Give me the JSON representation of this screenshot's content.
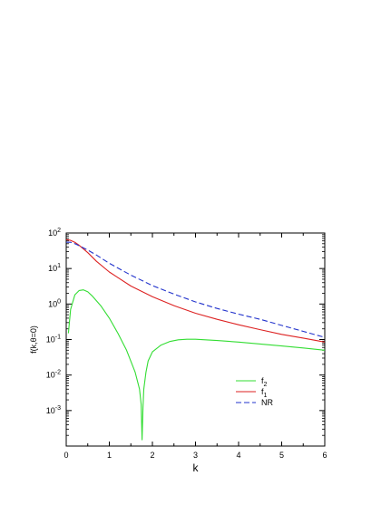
{
  "chart_data": {
    "type": "line",
    "xlabel": "k",
    "ylabel": "f(k,θ=0)",
    "xlim": [
      0,
      6
    ],
    "ylim": [
      0.0001,
      100
    ],
    "yscale": "log",
    "x_ticks": [
      "0",
      "1",
      "2",
      "3",
      "4",
      "5",
      "6"
    ],
    "y_ticks": [
      {
        "base": "10",
        "exp": "-3",
        "value": 0.001
      },
      {
        "base": "10",
        "exp": "-2",
        "value": 0.01
      },
      {
        "base": "10",
        "exp": "-1",
        "value": 0.1
      },
      {
        "base": "10",
        "exp": "0",
        "value": 1
      },
      {
        "base": "10",
        "exp": "1",
        "value": 10
      },
      {
        "base": "10",
        "exp": "2",
        "value": 100
      }
    ],
    "grid": false,
    "legend_position": "lower-right",
    "series": [
      {
        "name": "f2",
        "name_base": "f",
        "name_sub": "2",
        "color": "#33dd33",
        "dash": "solid",
        "x": [
          0.05,
          0.1,
          0.2,
          0.3,
          0.4,
          0.5,
          0.6,
          0.8,
          1.0,
          1.2,
          1.4,
          1.6,
          1.7,
          1.74,
          1.76,
          1.78,
          1.8,
          1.85,
          1.9,
          2.0,
          2.2,
          2.4,
          2.6,
          2.8,
          3.0,
          3.5,
          4.0,
          4.5,
          5.0,
          5.5,
          6.0
        ],
        "y": [
          0.15,
          0.7,
          1.8,
          2.4,
          2.5,
          2.2,
          1.7,
          0.9,
          0.4,
          0.15,
          0.05,
          0.012,
          0.004,
          0.0015,
          0.00015,
          0.0012,
          0.004,
          0.012,
          0.025,
          0.045,
          0.07,
          0.088,
          0.098,
          0.102,
          0.102,
          0.094,
          0.085,
          0.075,
          0.066,
          0.058,
          0.05
        ]
      },
      {
        "name": "f1",
        "name_base": "f",
        "name_sub": "1",
        "color": "#dd2222",
        "dash": "solid",
        "x": [
          0.0,
          0.1,
          0.2,
          0.3,
          0.5,
          0.7,
          1.0,
          1.5,
          2.0,
          2.5,
          3.0,
          3.5,
          4.0,
          4.5,
          5.0,
          5.5,
          6.0
        ],
        "y": [
          65,
          62,
          55,
          45,
          28,
          16,
          8,
          3.2,
          1.6,
          0.9,
          0.55,
          0.37,
          0.26,
          0.19,
          0.14,
          0.11,
          0.085
        ]
      },
      {
        "name": "NR",
        "name_base": "NR",
        "name_sub": "",
        "color": "#2233cc",
        "dash": "dashed",
        "x": [
          0.0,
          0.1,
          0.2,
          0.3,
          0.5,
          0.7,
          1.0,
          1.5,
          2.0,
          2.5,
          3.0,
          3.5,
          4.0,
          4.5,
          5.0,
          5.5,
          6.0
        ],
        "y": [
          55,
          55,
          50,
          44,
          33,
          24,
          14,
          6.5,
          3.3,
          1.9,
          1.15,
          0.75,
          0.52,
          0.37,
          0.25,
          0.17,
          0.115
        ]
      }
    ]
  }
}
